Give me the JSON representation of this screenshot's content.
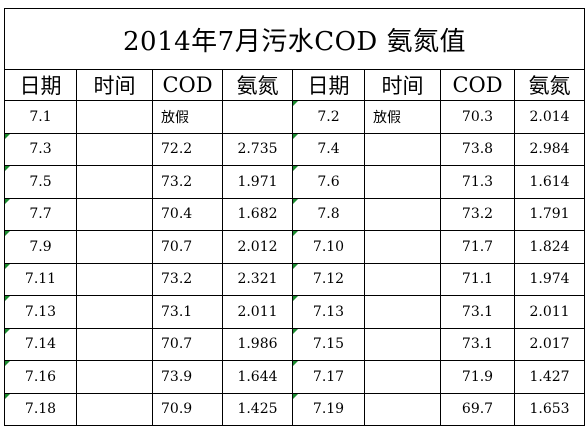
{
  "sheet": {
    "title": "2014年7月污水COD  氨氮值",
    "headers": [
      "日期",
      "时间",
      "COD",
      "氨氮",
      "日期",
      "时间",
      "COD",
      "氨氮"
    ],
    "rows": [
      [
        "7.1",
        "",
        "放假",
        "",
        "7.2",
        "放假",
        "70.3",
        "2.014"
      ],
      [
        "7.3",
        "",
        "72.2",
        "2.735",
        "7.4",
        "",
        "73.8",
        "2.984"
      ],
      [
        "7.5",
        "",
        "73.2",
        "1.971",
        "7.6",
        "",
        "71.3",
        "1.614"
      ],
      [
        "7.7",
        "",
        "70.4",
        "1.682",
        "7.8",
        "",
        "73.2",
        "1.791"
      ],
      [
        "7.9",
        "",
        "70.7",
        "2.012",
        "7.10",
        "",
        "71.7",
        "1.824"
      ],
      [
        "7.11",
        "",
        "73.2",
        "2.321",
        "7.12",
        "",
        "71.1",
        "1.974"
      ],
      [
        "7.13",
        "",
        "73.1",
        "2.011",
        "7.13",
        "",
        "73.1",
        "2.011"
      ],
      [
        "7.14",
        "",
        "70.7",
        "1.986",
        "7.15",
        "",
        "73.1",
        "2.017"
      ],
      [
        "7.16",
        "",
        "73.9",
        "1.644",
        "7.17",
        "",
        "71.9",
        "1.427"
      ],
      [
        "7.18",
        "",
        "70.9",
        "1.425",
        "7.19",
        "",
        "69.7",
        "1.653"
      ]
    ],
    "flag_color": "#1a8a2e"
  }
}
